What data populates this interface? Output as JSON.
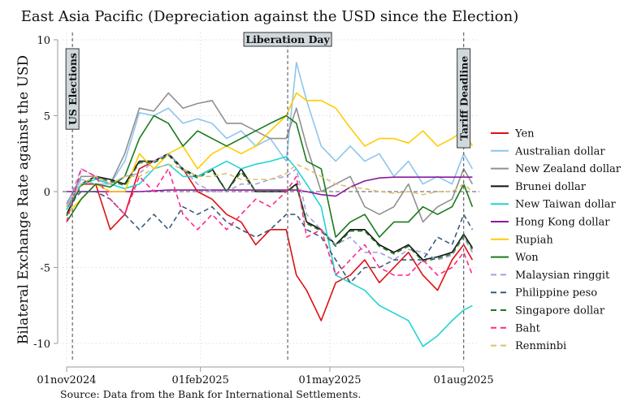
{
  "chart_data": {
    "type": "line",
    "title": "East Asia Pacific (Depreciation against the USD since the Election)",
    "ylabel": "Bilateral Exchange Rate against the USD",
    "xlabel": "",
    "note": "Source: Data from the Bank for International Settlements.",
    "ylim": [
      -10,
      10
    ],
    "yticks": [
      10,
      5,
      0,
      -5,
      -10
    ],
    "xlim": [
      "2024-11-01",
      "2025-08-10"
    ],
    "xticks": [
      {
        "date": "2024-11-01",
        "label": "01nov2024"
      },
      {
        "date": "2025-02-01",
        "label": "01feb2025"
      },
      {
        "date": "2025-05-01",
        "label": "01may2025"
      },
      {
        "date": "2025-08-01",
        "label": "01aug2025"
      }
    ],
    "grid": true,
    "legend_position": "right",
    "events": [
      {
        "date": "2024-11-05",
        "label": "US Elections",
        "orientation": "vertical"
      },
      {
        "date": "2025-04-02",
        "label": "Liberation Day",
        "orientation": "horizontal"
      },
      {
        "date": "2025-08-01",
        "label": "Tariff Deadline",
        "orientation": "vertical"
      }
    ],
    "x": [
      "2024-11-01",
      "2024-11-11",
      "2024-11-21",
      "2024-12-01",
      "2024-12-11",
      "2024-12-21",
      "2024-12-31",
      "2025-01-10",
      "2025-01-20",
      "2025-01-30",
      "2025-02-09",
      "2025-02-19",
      "2025-03-01",
      "2025-03-11",
      "2025-03-21",
      "2025-04-01",
      "2025-04-08",
      "2025-04-15",
      "2025-04-25",
      "2025-05-05",
      "2025-05-15",
      "2025-05-25",
      "2025-06-04",
      "2025-06-14",
      "2025-06-24",
      "2025-07-04",
      "2025-07-14",
      "2025-07-24",
      "2025-08-01",
      "2025-08-07"
    ],
    "series": [
      {
        "name": "Yen",
        "color": "#dd1111",
        "dashed": false,
        "values": [
          -1,
          0.5,
          0.5,
          -2.5,
          -1.5,
          1.5,
          2,
          2.5,
          1.5,
          0,
          -0.5,
          -1.5,
          -2,
          -3.5,
          -2.5,
          -2.5,
          -5.5,
          -6.5,
          -8.5,
          -6,
          -5.5,
          -4.5,
          -6,
          -5,
          -4,
          -5.5,
          -6.5,
          -4.5,
          -3.5,
          -4.5
        ]
      },
      {
        "name": "Australian dollar",
        "color": "#8ec5ee",
        "dashed": false,
        "values": [
          -1,
          0.8,
          0.5,
          0.5,
          2,
          5.2,
          5,
          5.5,
          4.5,
          4.8,
          4.5,
          3.5,
          4,
          3,
          3.5,
          2,
          8.5,
          6,
          3,
          2,
          3,
          2,
          2.5,
          1,
          2,
          0.5,
          1,
          0.5,
          2.5,
          1.5
        ]
      },
      {
        "name": "New Zealand dollar",
        "color": "#909090",
        "dashed": false,
        "values": [
          -0.8,
          1,
          1,
          0.5,
          2.5,
          5.5,
          5.3,
          6.5,
          5.5,
          5.8,
          6,
          4.5,
          4.5,
          4,
          3.5,
          3.5,
          5.5,
          3,
          0,
          0.5,
          1,
          -1,
          -1.5,
          -1,
          0.5,
          -2,
          -1,
          -0.5,
          1.5,
          0.5
        ]
      },
      {
        "name": "Brunei dollar",
        "color": "#111111",
        "dashed": false,
        "values": [
          -1.5,
          0.5,
          1,
          0.8,
          0.5,
          2,
          2,
          2.5,
          1.5,
          1,
          1.5,
          0,
          1.5,
          0,
          0,
          0,
          0.5,
          -2,
          -2.5,
          -3.5,
          -2.5,
          -2.5,
          -3.5,
          -4,
          -3.5,
          -4.5,
          -4.3,
          -4,
          -2.8,
          -3.7
        ]
      },
      {
        "name": "New Taiwan dollar",
        "color": "#22d4d4",
        "dashed": false,
        "values": [
          -1.2,
          0.5,
          0.8,
          0.5,
          0.2,
          0.5,
          1.5,
          1.8,
          1,
          1,
          1.5,
          2,
          1.5,
          1.8,
          2,
          2.3,
          1.5,
          0.5,
          -1,
          -5.5,
          -6,
          -6.5,
          -7.5,
          -8,
          -8.5,
          -10.2,
          -9.5,
          -8.5,
          -7.8,
          -7.5
        ]
      },
      {
        "name": "Hong Kong dollar",
        "color": "#8b1a9c",
        "dashed": false,
        "values": [
          0,
          0,
          0,
          0,
          0,
          0,
          0.05,
          0.1,
          0.1,
          0.1,
          0.1,
          0.1,
          0.1,
          0.1,
          0.1,
          0.1,
          0.1,
          0,
          -0.2,
          -0.3,
          0.3,
          0.7,
          0.9,
          0.95,
          0.95,
          0.95,
          0.95,
          0.95,
          0.95,
          0.95
        ]
      },
      {
        "name": "Rupiah",
        "color": "#ffcc00",
        "dashed": false,
        "values": [
          -1.5,
          -0.5,
          0.5,
          0,
          0,
          2.5,
          1.5,
          2.5,
          3,
          1.5,
          2.5,
          3,
          2.5,
          3,
          4,
          5,
          6.5,
          6,
          6,
          5.5,
          4.2,
          3,
          3.5,
          3.5,
          3.2,
          4,
          3,
          3.5,
          4,
          3
        ]
      },
      {
        "name": "Won",
        "color": "#1a7a1a",
        "dashed": false,
        "values": [
          -2,
          -0.5,
          0.5,
          0.3,
          1,
          3.5,
          5,
          4.5,
          3,
          4,
          3.5,
          3,
          3.5,
          4,
          4.5,
          5,
          4.5,
          2,
          1.5,
          -3,
          -2,
          -1.5,
          -3,
          -2,
          -2,
          -1,
          -1.5,
          -1,
          0.5,
          -1
        ]
      },
      {
        "name": "Malaysian ringgit",
        "color": "#a89fe0",
        "dashed": true,
        "values": [
          -1,
          1.5,
          1,
          0.5,
          1,
          1.2,
          2,
          2.5,
          1.5,
          0.5,
          0,
          0,
          0.5,
          0.5,
          0.8,
          1,
          1.5,
          -1.5,
          -2.5,
          -3.5,
          -3,
          -4,
          -4,
          -4.5,
          -3.8,
          -4,
          -4.5,
          -4.2,
          -3,
          -4
        ]
      },
      {
        "name": "Philippine peso",
        "color": "#3b5a7a",
        "dashed": true,
        "values": [
          -1,
          0,
          0,
          -0.5,
          -1.5,
          -2.5,
          -1.5,
          -2.5,
          -1,
          -1.5,
          -1,
          -2,
          -2.5,
          -3,
          -2.5,
          -1.5,
          -1.5,
          -2.5,
          -3,
          -4.5,
          -6,
          -5,
          -5,
          -4.5,
          -4.5,
          -4.5,
          -3,
          -3.5,
          -1.5,
          -2.5
        ]
      },
      {
        "name": "Singapore dollar",
        "color": "#1f7a1f",
        "dashed": true,
        "values": [
          -1.6,
          0.4,
          0.9,
          0.7,
          0.4,
          1.9,
          1.9,
          2.4,
          1.4,
          0.9,
          1.4,
          0,
          1.3,
          0,
          0,
          0,
          0.4,
          -2.1,
          -2.6,
          -3.6,
          -2.6,
          -2.6,
          -3.6,
          -4.1,
          -3.6,
          -4.6,
          -4.4,
          -4.1,
          -2.9,
          -3.8
        ]
      },
      {
        "name": "Baht",
        "color": "#ff2a8a",
        "dashed": true,
        "values": [
          -2,
          1.5,
          1,
          -0.5,
          -1.5,
          1,
          0,
          1.5,
          -1.5,
          -2.5,
          -1.5,
          -2.5,
          -1.5,
          -0.5,
          -1,
          0,
          1,
          -3,
          -2.5,
          -5.5,
          -4.5,
          -3.5,
          -5,
          -5.5,
          -5.5,
          -4.5,
          -5.5,
          -5,
          -4,
          -5.5
        ]
      },
      {
        "name": "Renminbi",
        "color": "#d8c070",
        "dashed": true,
        "values": [
          -1,
          0.5,
          1,
          0.5,
          1,
          1,
          1.5,
          1.8,
          1.5,
          1,
          1,
          1.2,
          0.8,
          0.8,
          0.8,
          1.2,
          1.8,
          1.5,
          1,
          0.5,
          0.3,
          0.2,
          0,
          -0.1,
          0,
          -0.2,
          0,
          0,
          0.5,
          0
        ]
      }
    ]
  }
}
